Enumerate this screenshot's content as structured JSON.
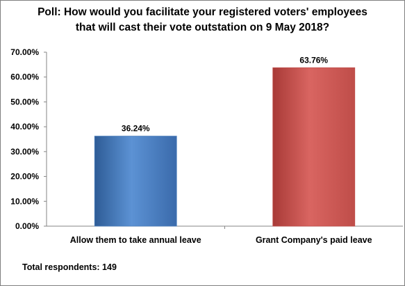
{
  "chart_data": {
    "type": "bar",
    "title_lines": [
      "Poll: How would you facilitate your registered voters' employees",
      "that will cast their vote outstation on 9 May 2018?"
    ],
    "categories": [
      "Allow them to take annual leave",
      "Grant Company's paid leave"
    ],
    "values": [
      36.24,
      63.76
    ],
    "value_labels": [
      "36.24%",
      "63.76%"
    ],
    "y_ticks": [
      "0.00%",
      "10.00%",
      "20.00%",
      "30.00%",
      "40.00%",
      "50.00%",
      "60.00%",
      "70.00%"
    ],
    "ylim": [
      0,
      70
    ],
    "grid": false,
    "bar_colors": [
      "#4f81bd",
      "#c0504d"
    ],
    "bar_gradients": [
      [
        "#2e5c96",
        "#5c92d4",
        "#3a6aab"
      ],
      [
        "#a83a37",
        "#d96561",
        "#bf4d49"
      ]
    ]
  },
  "footer": {
    "label": "Total respondents: 149"
  }
}
